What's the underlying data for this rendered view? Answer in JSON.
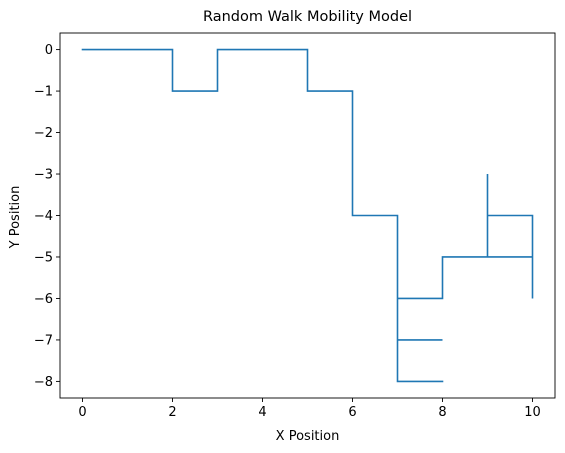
{
  "chart_data": {
    "type": "line",
    "title": "Random Walk Mobility Model",
    "xlabel": "X Position",
    "ylabel": "Y Position",
    "xlim": [
      -0.5,
      10.5
    ],
    "ylim": [
      -8.4,
      0.4
    ],
    "xticks": [
      0,
      2,
      4,
      6,
      8,
      10
    ],
    "yticks": [
      0,
      -1,
      -2,
      -3,
      -4,
      -5,
      -6,
      -7,
      -8
    ],
    "xtick_labels": [
      "0",
      "2",
      "4",
      "6",
      "8",
      "10"
    ],
    "ytick_labels": [
      "0",
      "−1",
      "−2",
      "−3",
      "−4",
      "−5",
      "−6",
      "−7",
      "−8"
    ],
    "grid": false,
    "series": [
      {
        "color": "#1f77b4",
        "points": [
          [
            0,
            0
          ],
          [
            1,
            0
          ],
          [
            2,
            0
          ],
          [
            2,
            -1
          ],
          [
            3,
            -1
          ],
          [
            3,
            0
          ],
          [
            4,
            0
          ],
          [
            5,
            0
          ],
          [
            5,
            -1
          ],
          [
            6,
            -1
          ],
          [
            6,
            -2
          ],
          [
            6,
            -3
          ],
          [
            6,
            -4
          ],
          [
            7,
            -4
          ],
          [
            7,
            -5
          ],
          [
            7,
            -6
          ],
          [
            8,
            -6
          ],
          [
            8,
            -5
          ],
          [
            9,
            -5
          ],
          [
            10,
            -5
          ],
          [
            10,
            -4
          ],
          [
            9,
            -4
          ],
          [
            9,
            -3
          ],
          [
            9,
            -4
          ],
          [
            9,
            -5
          ],
          [
            10,
            -5
          ],
          [
            10,
            -6
          ],
          [
            10,
            -5
          ],
          [
            9,
            -5
          ],
          [
            8,
            -5
          ],
          [
            8,
            -6
          ],
          [
            7,
            -6
          ],
          [
            7,
            -7
          ],
          [
            8,
            -7
          ],
          [
            7,
            -7
          ],
          [
            7,
            -8
          ],
          [
            8,
            -8
          ]
        ]
      }
    ]
  }
}
